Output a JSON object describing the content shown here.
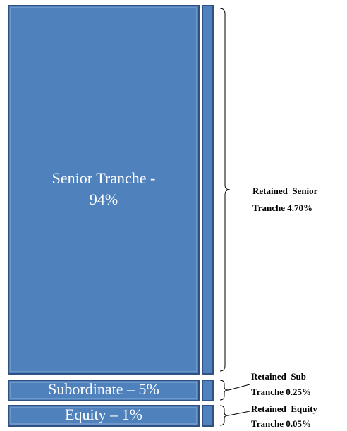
{
  "tranches": [
    {
      "label_lines": [
        "Senior Tranche -",
        "94%"
      ],
      "retained_lines": [
        "Retained  Senior",
        "Tranche 4.70%"
      ]
    },
    {
      "label_lines": [
        "Subordinate – 5%"
      ],
      "retained_lines": [
        "Retained  Sub",
        "Tranche 0.25%"
      ]
    },
    {
      "label_lines": [
        "Equity – 1%"
      ],
      "retained_lines": [
        "Retained  Equity",
        "Tranche 0.05%"
      ]
    }
  ]
}
